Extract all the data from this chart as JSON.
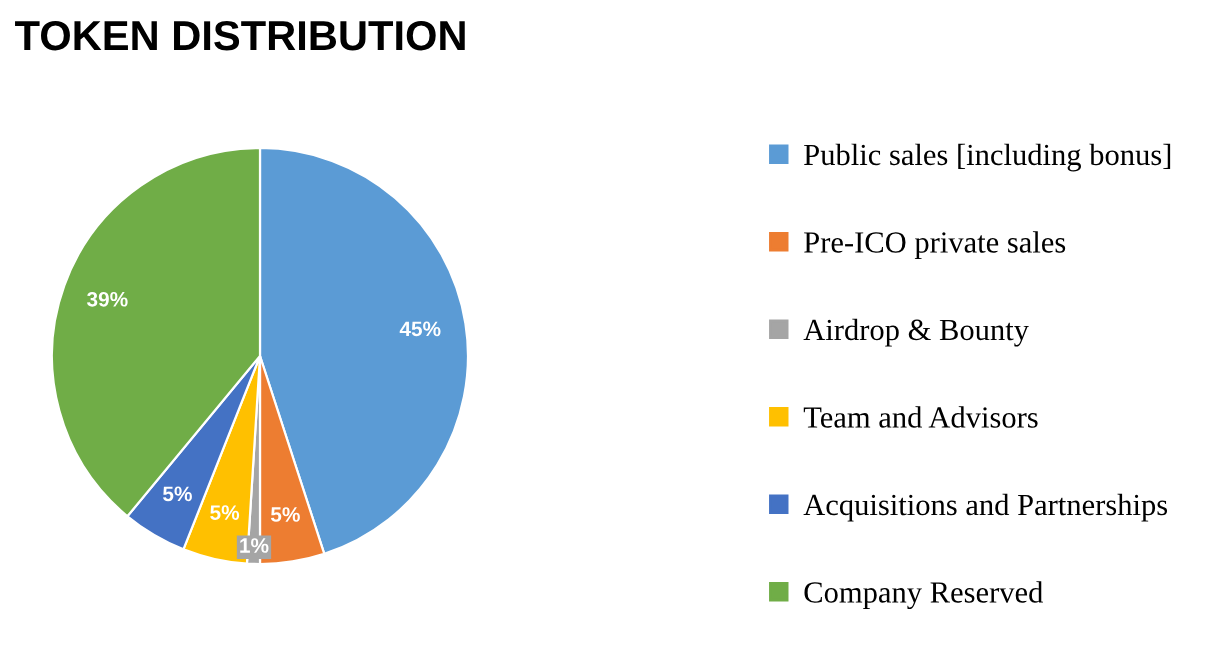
{
  "chart_data": {
    "type": "pie",
    "title": "TOKEN DISTRIBUTION",
    "categories": [
      "Public sales [including bonus]",
      "Pre-ICO private sales",
      "Airdrop & Bounty",
      "Team and Advisors",
      "Acquisitions and Partnerships",
      "Company Reserved"
    ],
    "values": [
      45,
      5,
      1,
      5,
      5,
      39
    ],
    "value_labels": [
      "45%",
      "5%",
      "1%",
      "5%",
      "5%",
      "39%"
    ],
    "colors": [
      "#5b9bd5",
      "#ed7d31",
      "#a5a5a5",
      "#ffc000",
      "#4472c4",
      "#70ad47"
    ],
    "legend": "right"
  }
}
